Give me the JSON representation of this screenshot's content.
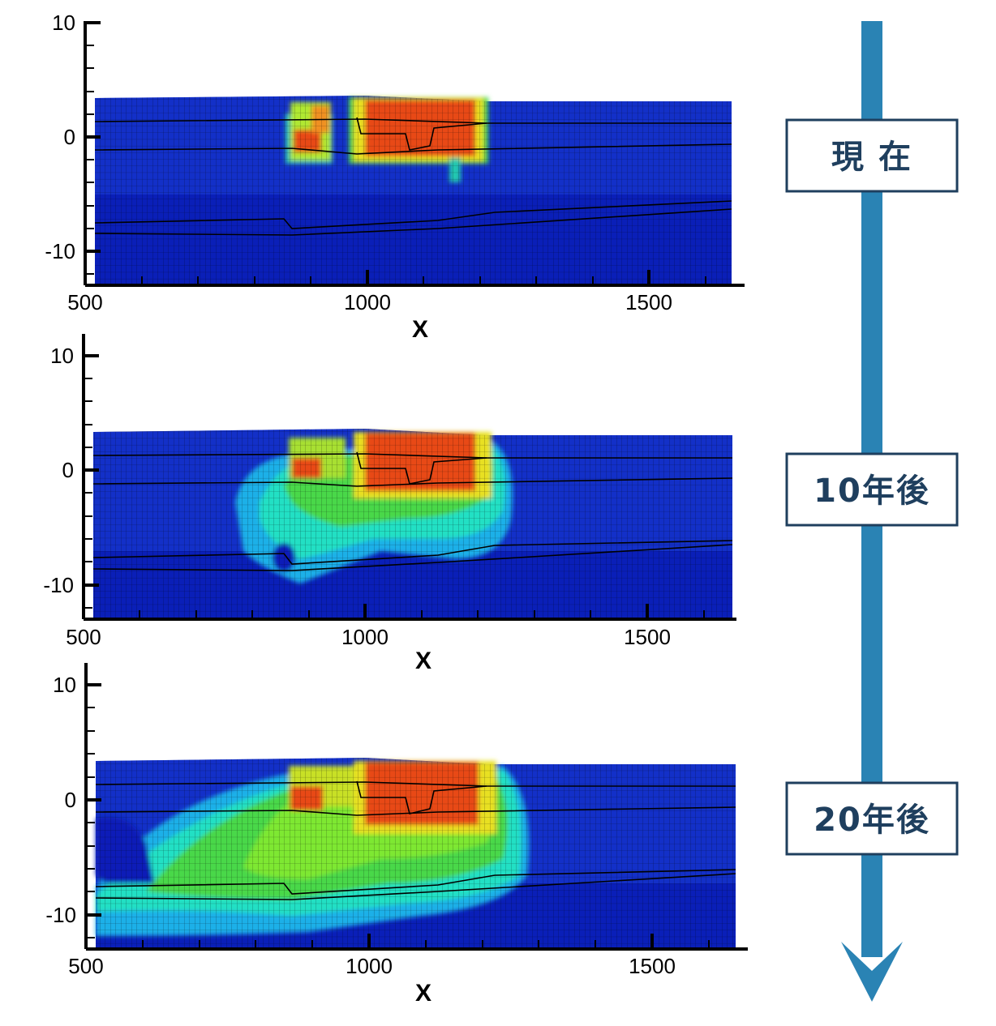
{
  "chart_data": [
    {
      "type": "heatmap",
      "xlabel": "X",
      "ylabel": "",
      "xlim": [
        500,
        1650
      ],
      "ylim": [
        -13,
        10
      ],
      "x_ticks": [
        "500",
        "1000",
        "1500"
      ],
      "y_ticks": [
        "10",
        "0",
        "-10"
      ],
      "time_label": "現 在",
      "grid": true,
      "colormap": [
        "#0a1fb8",
        "#1a4fe0",
        "#1cb0e8",
        "#24e0c4",
        "#3ad866",
        "#7ee830",
        "#e8e820",
        "#f0a020",
        "#e84a18"
      ]
    },
    {
      "type": "heatmap",
      "xlabel": "X",
      "ylabel": "",
      "xlim": [
        500,
        1650
      ],
      "ylim": [
        -13,
        10
      ],
      "x_ticks": [
        "500",
        "1000",
        "1500"
      ],
      "y_ticks": [
        "10",
        "0",
        "-10"
      ],
      "time_label": "10年後",
      "grid": true
    },
    {
      "type": "heatmap",
      "xlabel": "X",
      "ylabel": "",
      "xlim": [
        500,
        1650
      ],
      "ylim": [
        -13,
        10
      ],
      "x_ticks": [
        "500",
        "1000",
        "1500"
      ],
      "y_ticks": [
        "10",
        "0",
        "-10"
      ],
      "time_label": "20年後",
      "grid": true
    }
  ],
  "timeline": {
    "arrow_color": "#2a83b4",
    "label_border_color": "#1f3f5e"
  }
}
